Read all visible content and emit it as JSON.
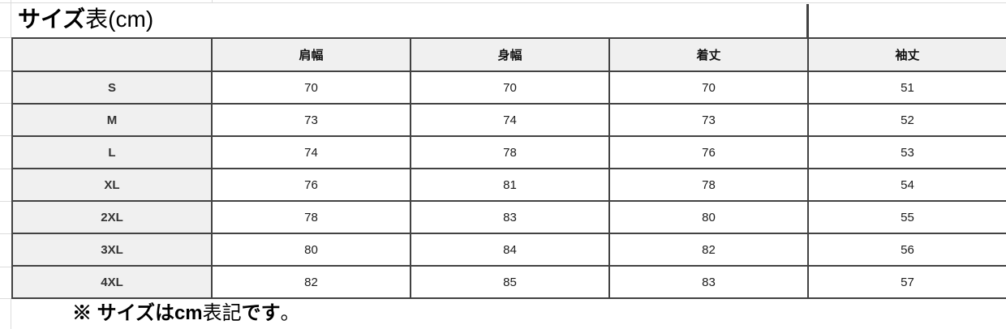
{
  "title": {
    "text": "サイズ表(cm)",
    "parts": [
      {
        "text": "サイズ",
        "bold": true
      },
      {
        "text": "表(cm)",
        "bold": false
      }
    ]
  },
  "size_table": {
    "corner_label": "",
    "columns": [
      "肩幅",
      "身幅",
      "着丈",
      "袖丈"
    ],
    "rows": [
      {
        "size": "S",
        "values": [
          "70",
          "70",
          "70",
          "51"
        ]
      },
      {
        "size": "M",
        "values": [
          "73",
          "74",
          "73",
          "52"
        ]
      },
      {
        "size": "L",
        "values": [
          "74",
          "78",
          "76",
          "53"
        ]
      },
      {
        "size": "XL",
        "values": [
          "76",
          "81",
          "78",
          "54"
        ]
      },
      {
        "size": "2XL",
        "values": [
          "78",
          "83",
          "80",
          "55"
        ]
      },
      {
        "size": "3XL",
        "values": [
          "80",
          "84",
          "82",
          "56"
        ]
      },
      {
        "size": "4XL",
        "values": [
          "82",
          "85",
          "83",
          "57"
        ]
      }
    ]
  },
  "note": {
    "text": "※ サイズはcm表記です。",
    "parts": [
      {
        "text": "※ サイズは",
        "bold": true
      },
      {
        "text": "cm",
        "bold": true
      },
      {
        "text": "表記",
        "bold": false
      },
      {
        "text": "です",
        "bold": true
      },
      {
        "text": "。",
        "bold": false
      }
    ]
  },
  "colors": {
    "border": "#424242",
    "header_bg": "#f0f0f0",
    "gridline": "#dcdcdc",
    "text": "#1a1a1a"
  }
}
